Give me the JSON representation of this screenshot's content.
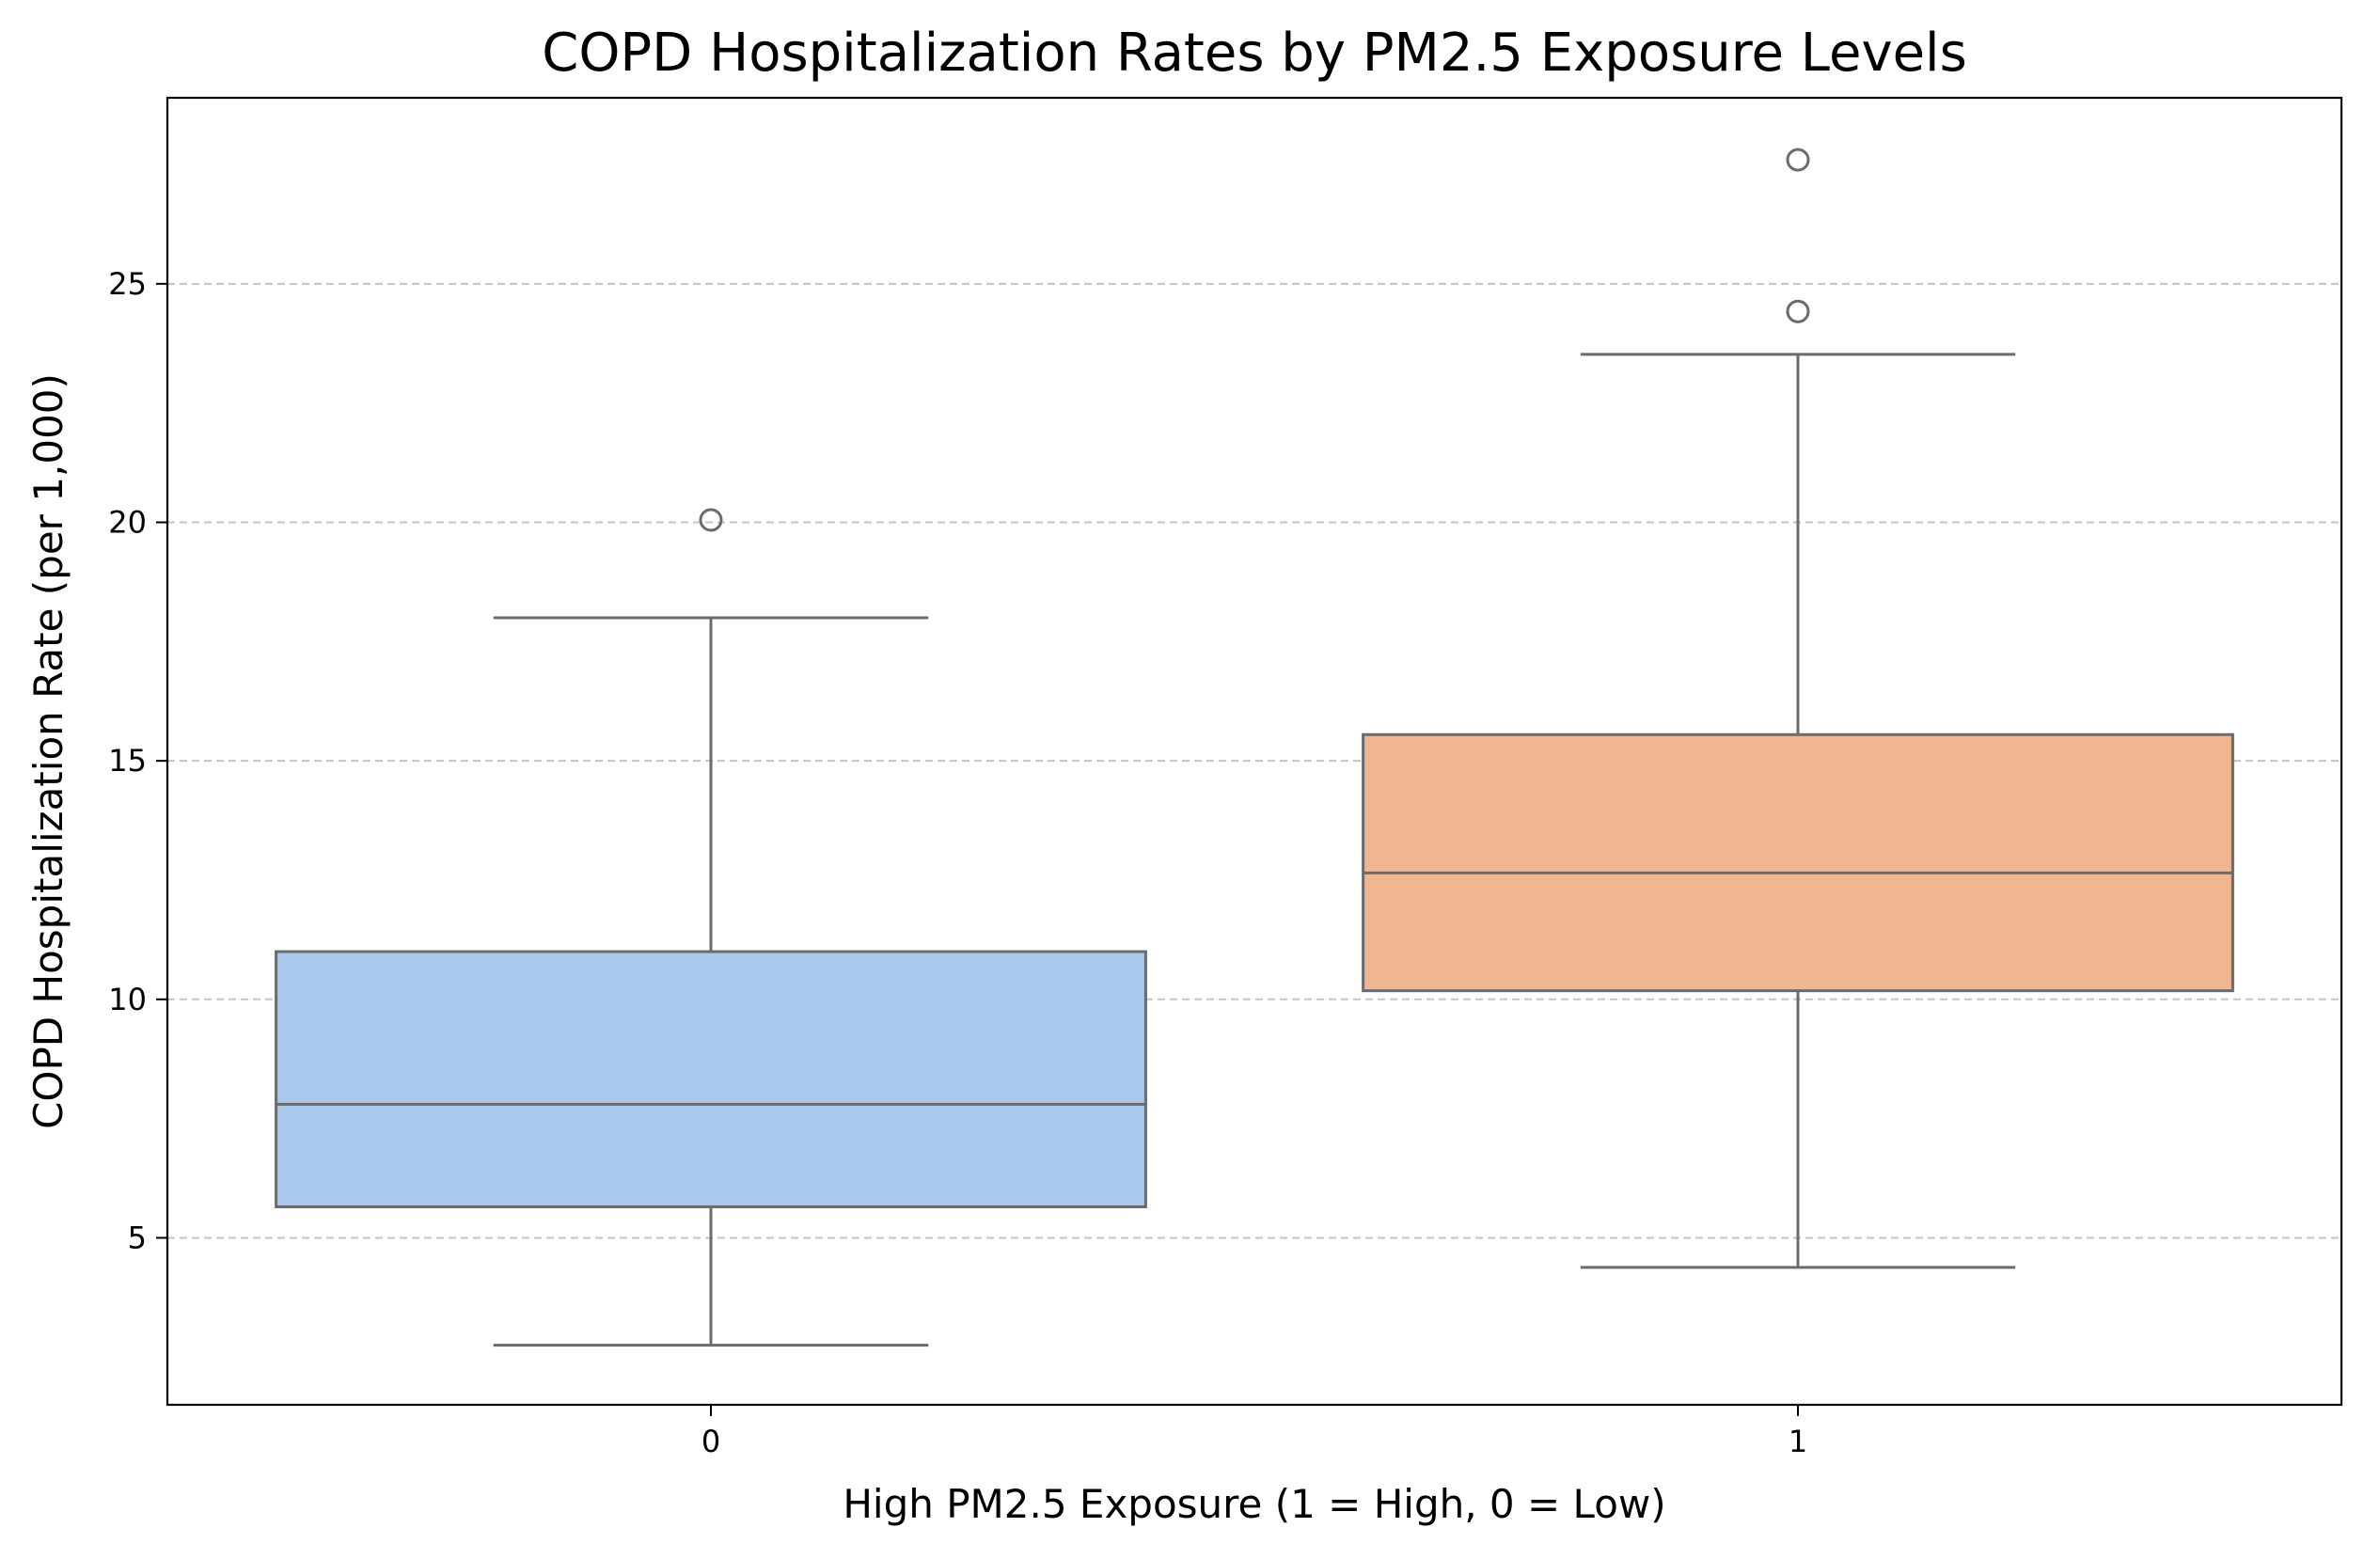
{
  "chart_data": {
    "type": "boxplot",
    "title": "COPD Hospitalization Rates by PM2.5 Exposure Levels",
    "xlabel": "High PM2.5 Exposure (1 = High, 0 = Low)",
    "ylabel": "COPD Hospitalization Rate (per 1,000)",
    "categories": [
      "0",
      "1"
    ],
    "ylim": [
      1.5,
      28.9
    ],
    "yticks": [
      5,
      10,
      15,
      20,
      25
    ],
    "grid": {
      "axis": "y",
      "style": "dashed"
    },
    "boxes": [
      {
        "category": "0",
        "whisker_low": 2.75,
        "q1": 5.65,
        "median": 7.8,
        "q3": 11.0,
        "whisker_high": 18.0,
        "outliers": [
          20.05
        ],
        "color": "#a9c8ec"
      },
      {
        "category": "1",
        "whisker_low": 4.38,
        "q1": 10.18,
        "median": 12.65,
        "q3": 15.55,
        "whisker_high": 23.52,
        "outliers": [
          24.42,
          27.6
        ],
        "color": "#f0b690"
      }
    ],
    "line_color": "#6b6b6b",
    "grid_color": "#c4c4c4"
  }
}
